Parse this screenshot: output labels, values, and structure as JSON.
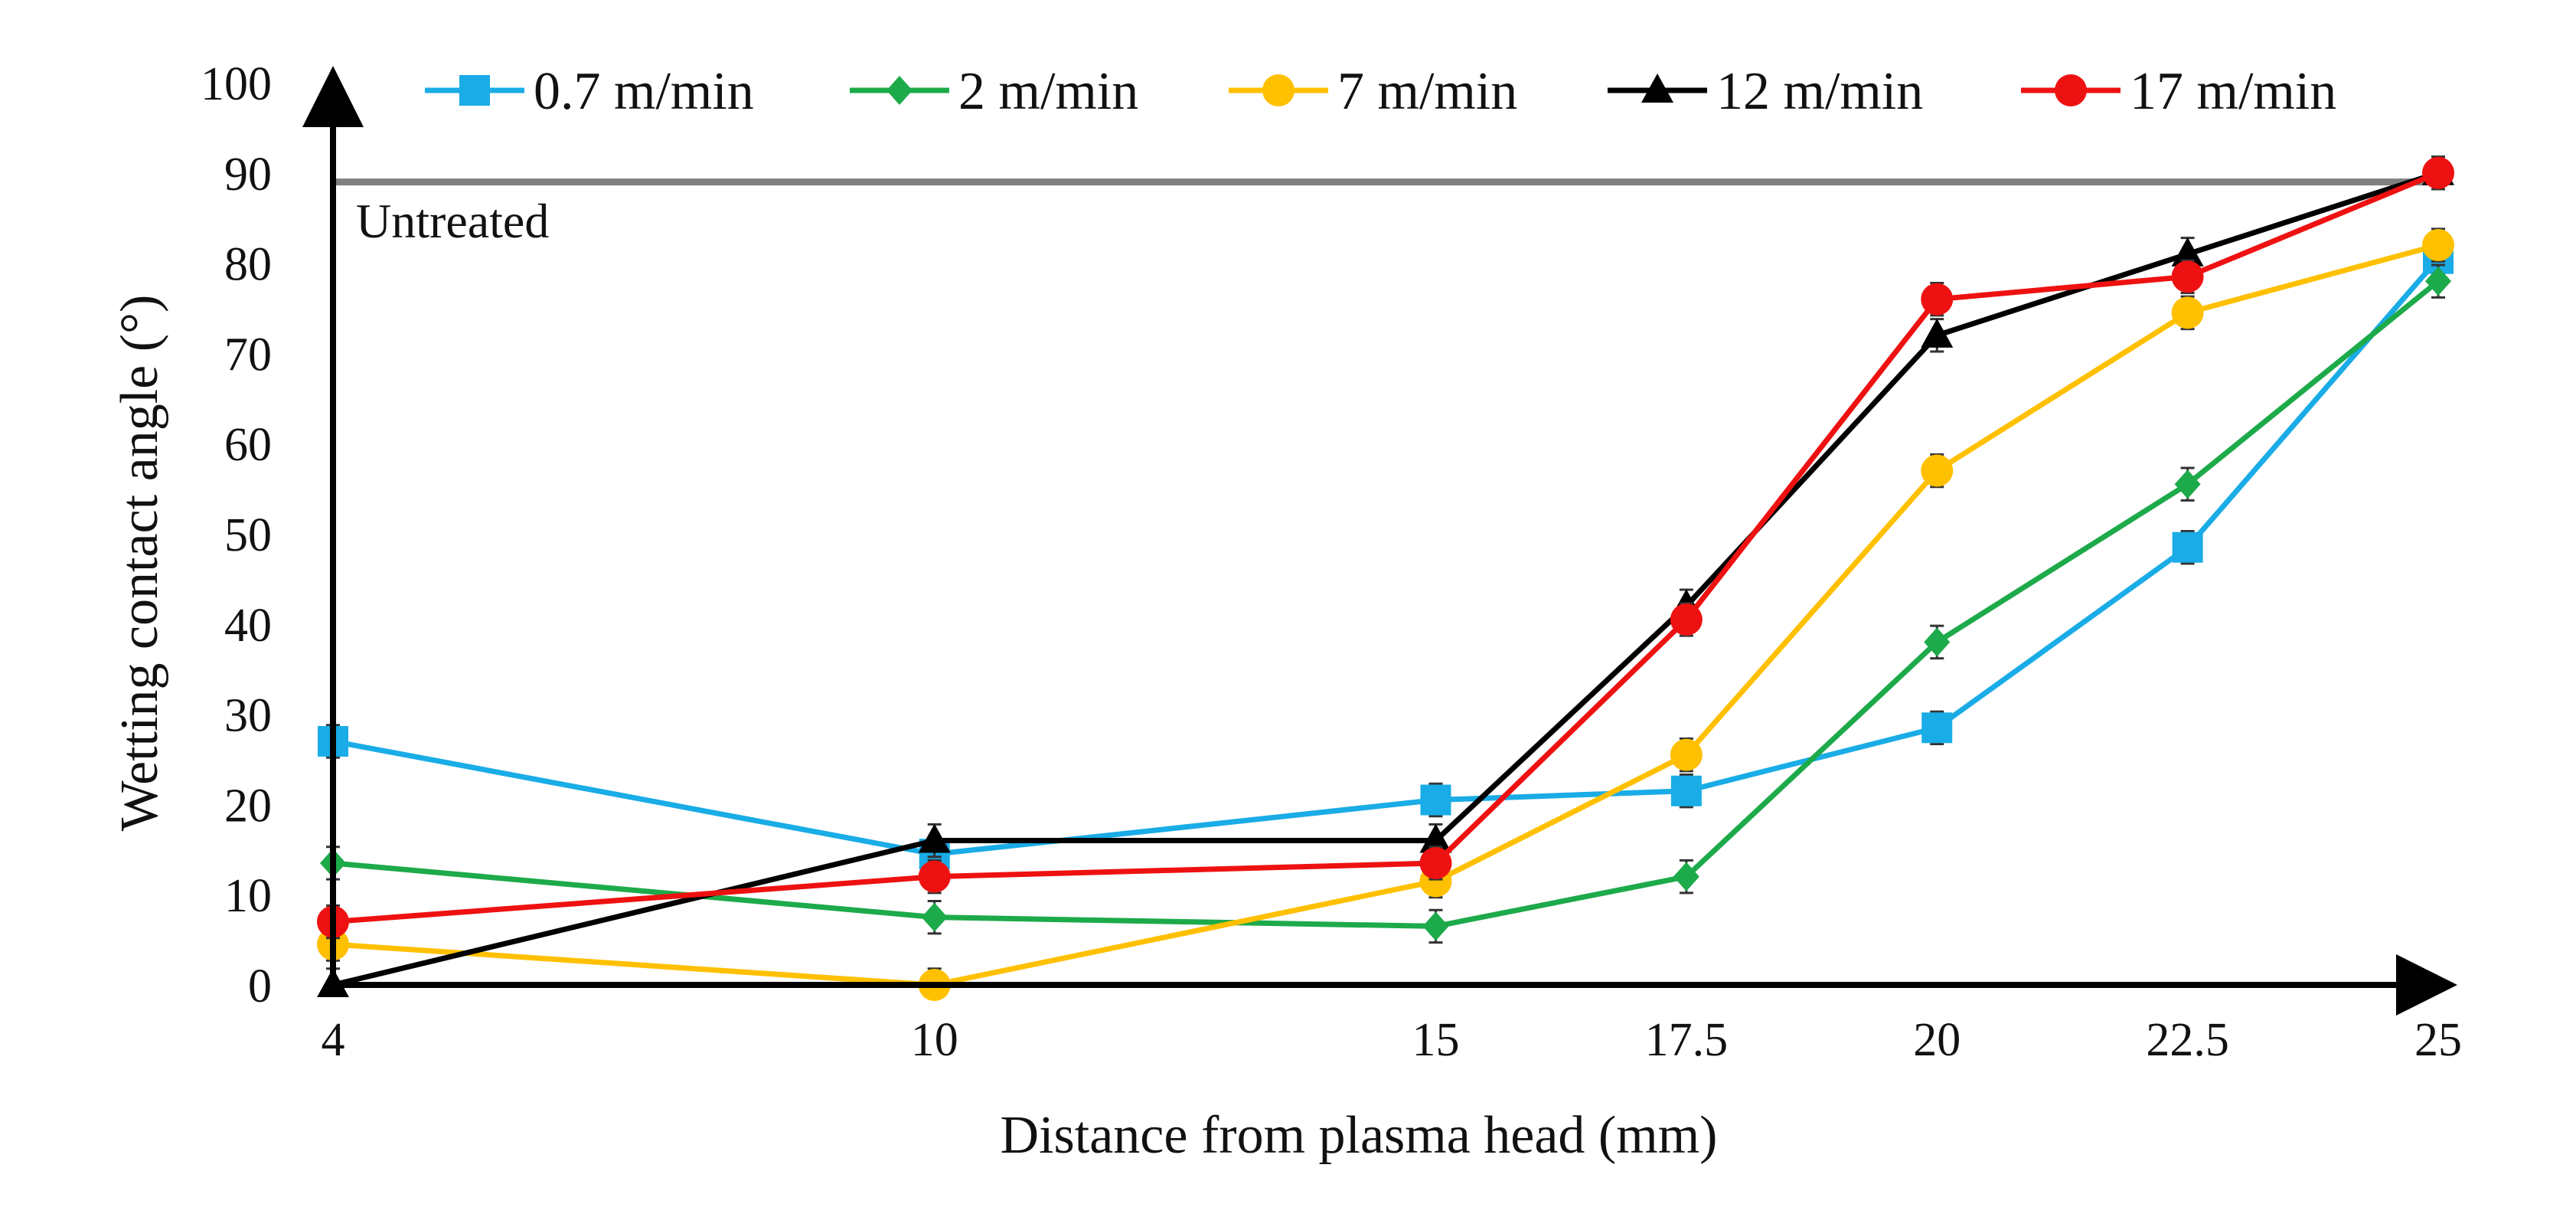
{
  "chart_data": {
    "type": "line",
    "title": "",
    "xlabel": "Distance from plasma head (mm)",
    "ylabel": "Wetting contact angle (°)",
    "x": [
      "4",
      "10",
      "15",
      "17.5",
      "20",
      "22.5",
      "25"
    ],
    "x_values": [
      4,
      10,
      15,
      17.5,
      20,
      22.5,
      25
    ],
    "ylim": [
      0,
      100
    ],
    "yticks": [
      "0",
      "10",
      "20",
      "30",
      "40",
      "50",
      "60",
      "70",
      "80",
      "90",
      "100"
    ],
    "grid": false,
    "legend_position": "top",
    "reference_line": {
      "label": "Untreated",
      "value": 89,
      "color": "#808080"
    },
    "error_bar": 1.8,
    "series": [
      {
        "name": "0.7 m/min",
        "color": "#1AACE6",
        "marker": "square",
        "values": [
          27,
          14.5,
          20.5,
          21.5,
          28.5,
          48.5,
          80.5
        ]
      },
      {
        "name": "2 m/min",
        "color": "#1DAA4A",
        "marker": "diamond",
        "values": [
          13.5,
          7.5,
          6.5,
          12,
          38,
          55.5,
          78
        ]
      },
      {
        "name": "7 m/min",
        "color": "#FFC000",
        "marker": "circle",
        "values": [
          4.5,
          0,
          11.5,
          25.5,
          57,
          74.5,
          82
        ]
      },
      {
        "name": "12 m/min",
        "color": "#000000",
        "marker": "triangle",
        "values": [
          0,
          16,
          16,
          42,
          72,
          81,
          90
        ]
      },
      {
        "name": "17 m/min",
        "color": "#EE1111",
        "marker": "circle",
        "values": [
          7,
          12,
          13.5,
          40.5,
          76,
          78.5,
          90
        ]
      }
    ]
  }
}
